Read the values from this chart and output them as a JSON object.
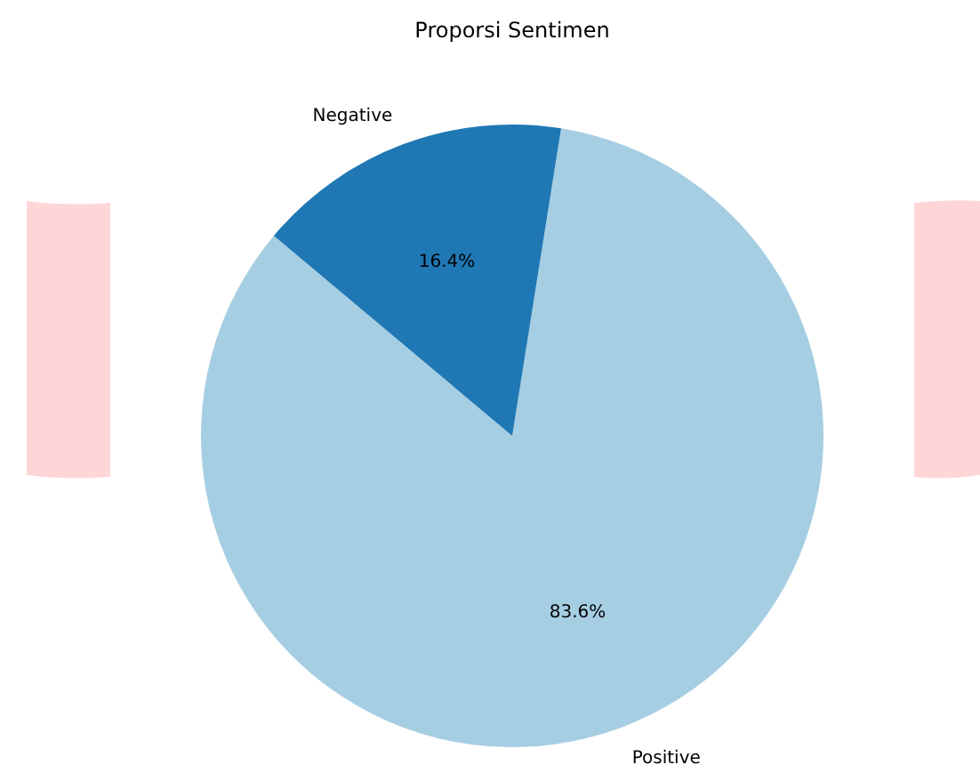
{
  "chart_data": {
    "type": "pie",
    "title": "Proporsi Sentimen",
    "categories": [
      "Positive",
      "Negative"
    ],
    "values": [
      83.6,
      16.4
    ],
    "colors": [
      "#a6cee3",
      "#1f78b4"
    ],
    "value_labels": [
      "83.6%",
      "16.4%"
    ]
  }
}
